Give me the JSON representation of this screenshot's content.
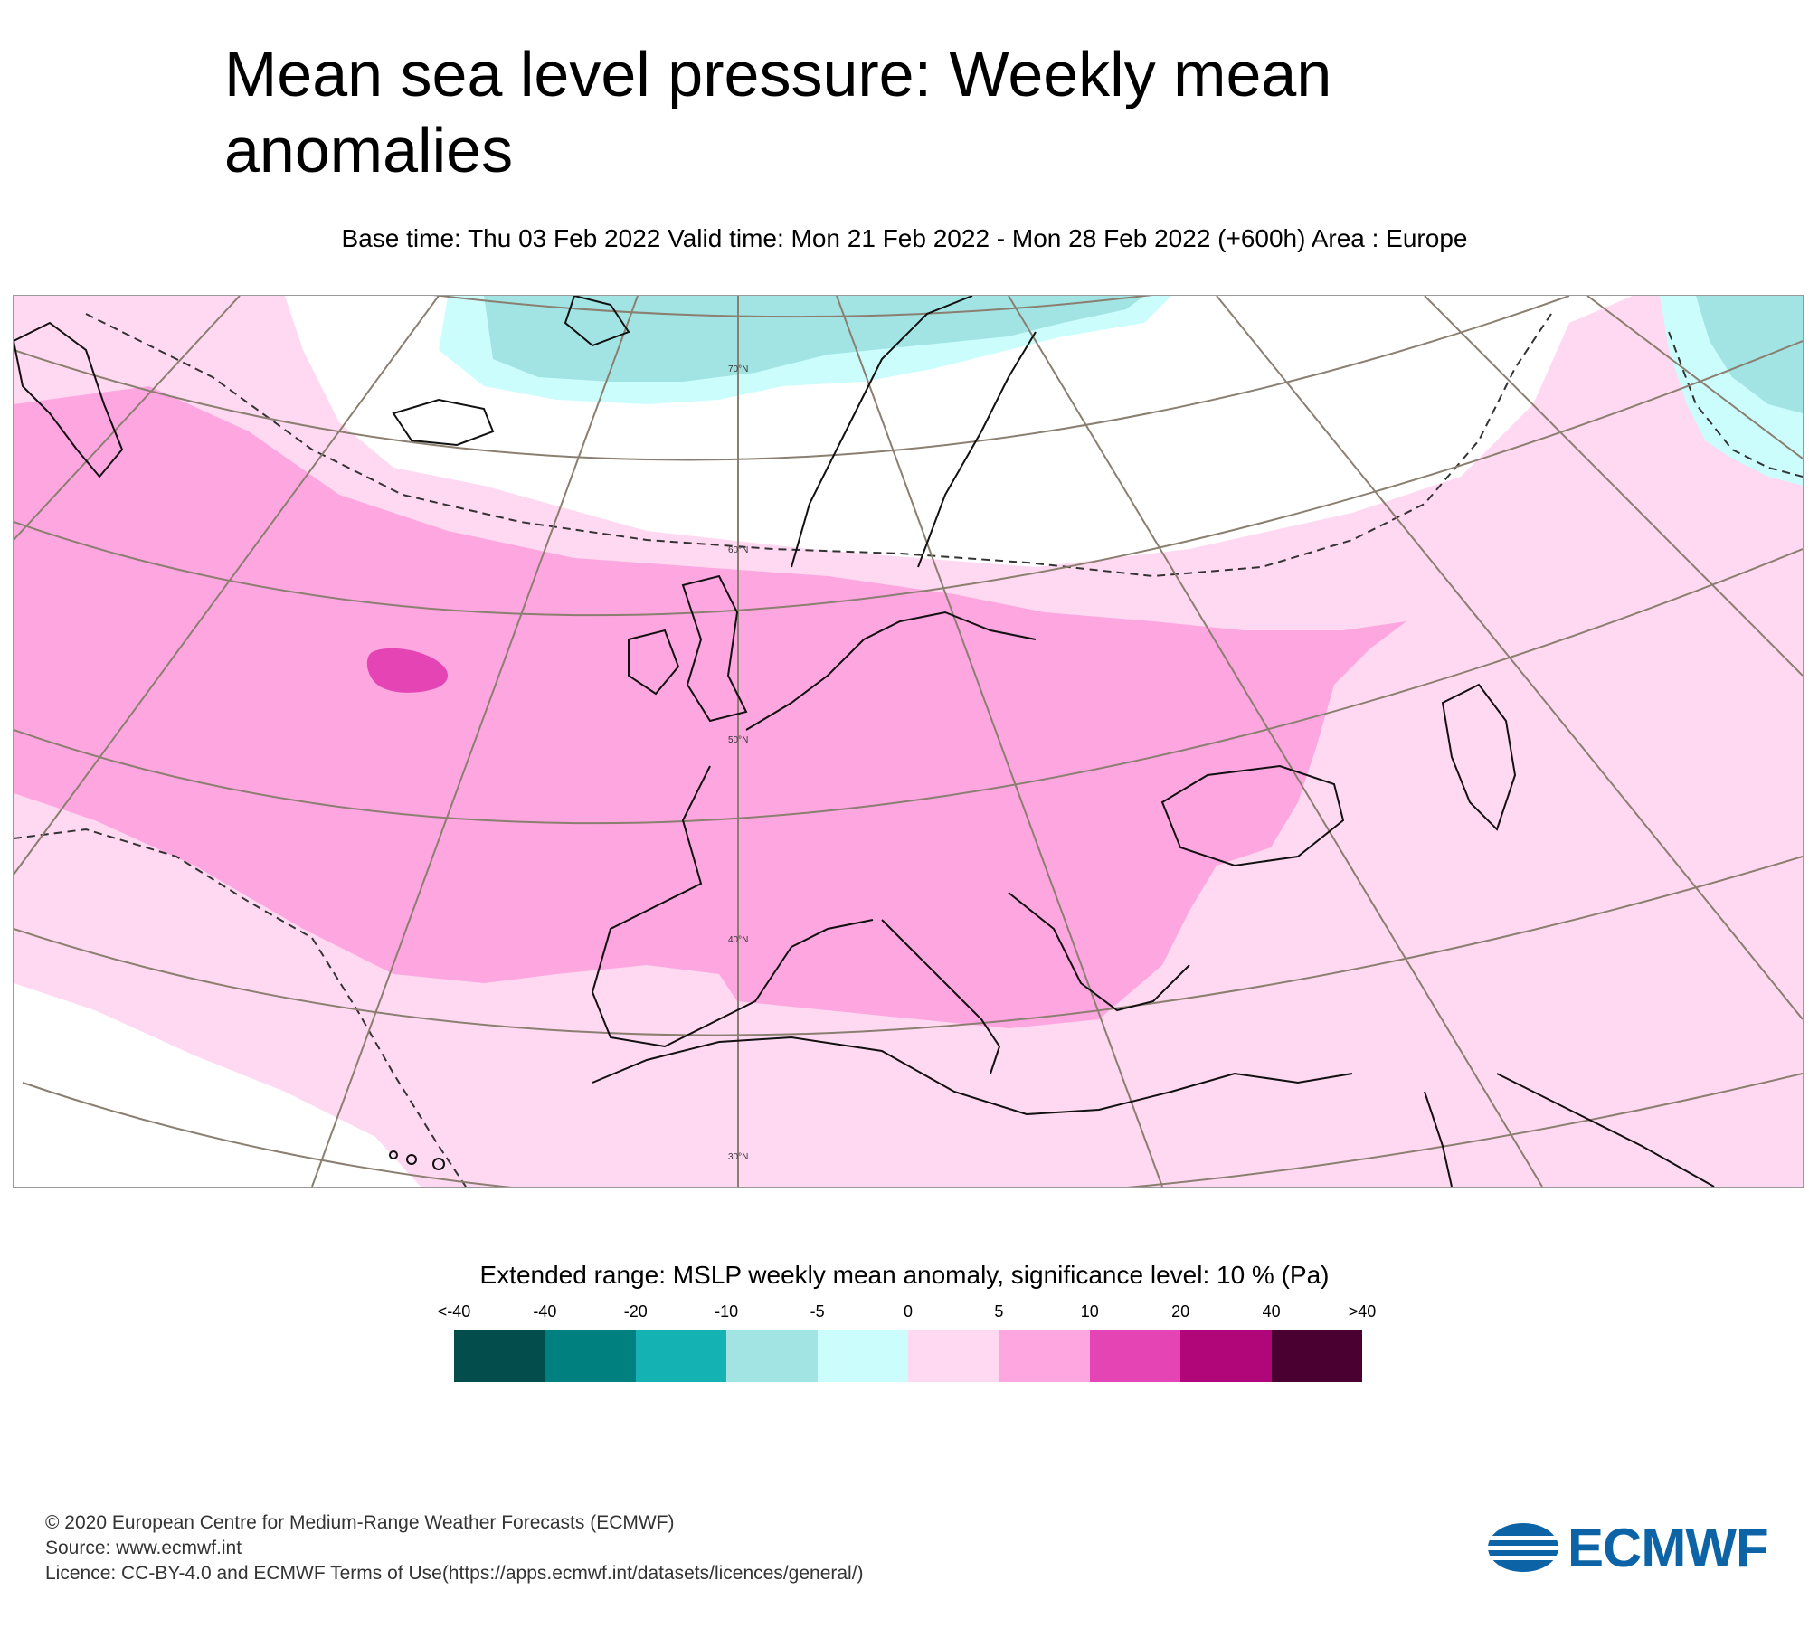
{
  "title": "Mean sea level pressure: Weekly mean anomalies",
  "subtitle": "Base time: Thu 03 Feb 2022 Valid time: Mon 21 Feb 2022 - Mon 28 Feb 2022 (+600h) Area : Europe",
  "map": {
    "area": "Europe",
    "latitude_labels": [
      "70°N",
      "60°N",
      "50°N",
      "40°N",
      "30°N"
    ]
  },
  "legend": {
    "title": "Extended range: MSLP weekly mean anomaly, significance level: 10 % (Pa)",
    "labels": [
      "<-40",
      "-40",
      "-20",
      "-10",
      "-5",
      "0",
      "5",
      "10",
      "20",
      "40",
      ">40"
    ],
    "colors": [
      "#034d4d",
      "#00807f",
      "#14b2b2",
      "#a2e4e4",
      "#ccfdfd",
      "#ffd8f1",
      "#fea6e0",
      "#e444b4",
      "#b0067a",
      "#4b0032"
    ]
  },
  "footer": {
    "copyright": "© 2020 European Centre for Medium-Range Weather Forecasts (ECMWF)",
    "source": "Source: www.ecmwf.int",
    "licence": "Licence: CC-BY-4.0 and ECMWF Terms of Use(https://apps.ecmwf.int/datasets/licences/general/)"
  },
  "logo": {
    "text": "ECMWF",
    "color": "#0c63a6"
  }
}
